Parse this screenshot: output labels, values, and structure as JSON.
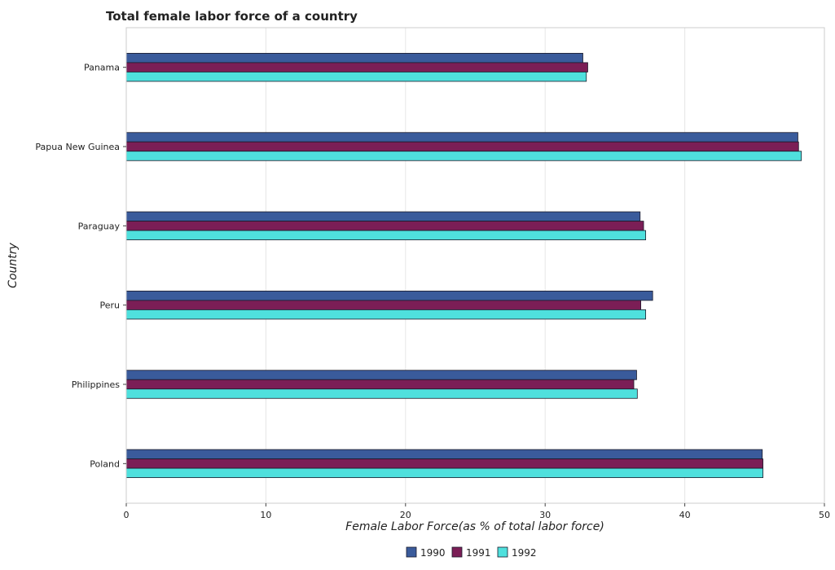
{
  "chart_data": {
    "type": "bar",
    "orientation": "horizontal",
    "title": "Total female labor force of a country",
    "xlabel": "Female Labor Force(as % of total labor force)",
    "ylabel": "Country",
    "categories": [
      "Panama",
      "Papua New Guinea",
      "Paraguay",
      "Peru",
      "Philippines",
      "Poland"
    ],
    "series": [
      {
        "name": "1990",
        "color": "#3a5b9b",
        "values": [
          32.7,
          48.1,
          36.8,
          37.7,
          36.55,
          45.55
        ]
      },
      {
        "name": "1991",
        "color": "#7b1e56",
        "values": [
          33.05,
          48.15,
          37.05,
          36.85,
          36.35,
          45.6
        ]
      },
      {
        "name": "1992",
        "color": "#4fe0dd",
        "values": [
          32.95,
          48.35,
          37.2,
          37.2,
          36.6,
          45.6
        ]
      }
    ],
    "xlim": [
      0,
      50
    ],
    "xticks": [
      0,
      10,
      20,
      30,
      40,
      50
    ],
    "grid": true,
    "legend_position": "bottom-center"
  }
}
